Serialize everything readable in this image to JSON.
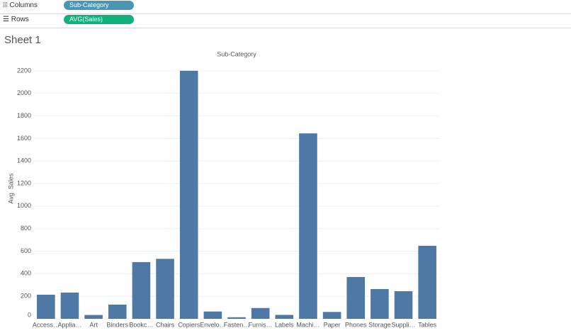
{
  "shelves": {
    "columns": {
      "label": "Columns",
      "pill": "Sub-Category"
    },
    "rows": {
      "label": "Rows",
      "pill": "AVG(Sales)"
    }
  },
  "sheet_title": "Sheet 1",
  "chart_data": {
    "type": "bar",
    "title": "Sub-Category",
    "y_label": "Avg. Sales",
    "color": "#4e79a7",
    "categories": [
      "Access…",
      "Applia…",
      "Art",
      "Binders",
      "Bookc…",
      "Chairs",
      "Copiers",
      "Envelo…",
      "Fasten…",
      "Furnis…",
      "Labels",
      "Machi…",
      "Paper",
      "Phones",
      "Storage",
      "Suppli…",
      "Tables"
    ],
    "values": [
      214,
      233,
      34,
      126,
      503,
      532,
      2200,
      65,
      14,
      96,
      35,
      1645,
      61,
      371,
      264,
      245,
      648
    ],
    "ylim": [
      0,
      2300
    ],
    "yticks": [
      0,
      200,
      400,
      600,
      800,
      1000,
      1200,
      1400,
      1600,
      1800,
      2000,
      2200
    ],
    "grid": true
  }
}
